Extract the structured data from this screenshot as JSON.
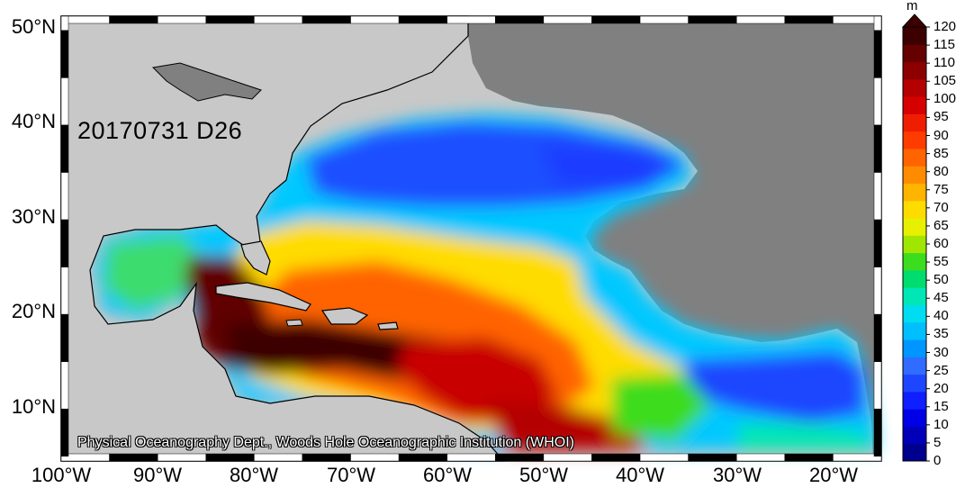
{
  "map": {
    "date_stamp": "20170731 D26",
    "credit": "Physical Oceanography Dept., Woods Hole Oceanographic Institution (WHOI)",
    "lat_labels": [
      "50°N",
      "40°N",
      "30°N",
      "20°N",
      "10°N"
    ],
    "lon_labels": [
      "100°W",
      "90°W",
      "80°W",
      "70°W",
      "60°W",
      "50°W",
      "40°W",
      "30°W",
      "20°W"
    ],
    "extent": {
      "lon_min": -100,
      "lon_max": -15,
      "lat_min": 4.5,
      "lat_max": 51.5
    },
    "colors": {
      "land_americas": "#c8c8c8",
      "land_africa_europe": "#808080",
      "frame_dark": "#000000"
    }
  },
  "colorbar": {
    "unit": "m",
    "min": 0,
    "max": 120,
    "step": 5,
    "ticks": [
      "120",
      "115",
      "110",
      "105",
      "100",
      "95",
      "90",
      "85",
      "80",
      "75",
      "70",
      "65",
      "60",
      "55",
      "50",
      "45",
      "40",
      "35",
      "30",
      "25",
      "20",
      "15",
      "10",
      "5",
      "0"
    ],
    "colors": [
      "#00008f",
      "#0000b8",
      "#0000e6",
      "#0f1fff",
      "#1e46ff",
      "#2f6cff",
      "#0096ff",
      "#00bfff",
      "#00dcf0",
      "#00e6b4",
      "#00dc6e",
      "#3cdc1e",
      "#a0e600",
      "#e6f000",
      "#ffdc00",
      "#ffb400",
      "#ff8c00",
      "#ff6400",
      "#ff3c00",
      "#f01e00",
      "#d70000",
      "#b40000",
      "#8c0000",
      "#640000",
      "#3c0000"
    ]
  }
}
